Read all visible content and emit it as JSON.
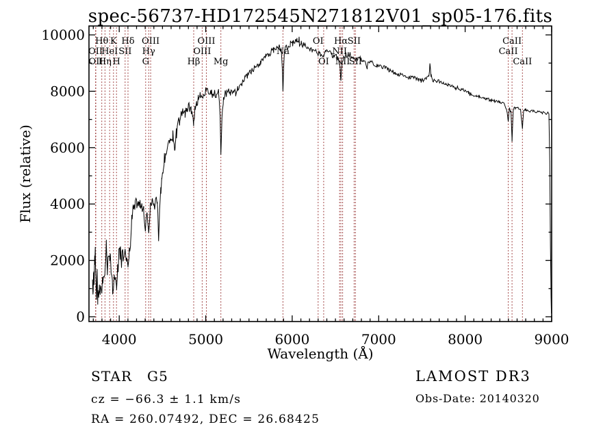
{
  "annotations": {
    "classification": "STAR",
    "subclass": "G5",
    "cz": "cz = −66.3 ± 1.1 km/s",
    "radec": "RA = 260.07492, DEC =  26.68425",
    "survey": "LAMOST DR3",
    "obs_date": "Obs-Date: 20140320"
  },
  "colors": {
    "spectrum": "#000000",
    "line_marker": "#973030",
    "text": "#000000",
    "background": "#ffffff"
  },
  "chart_data": {
    "type": "line",
    "title": "spec-56737-HD172545N271812V01_sp05-176.fits",
    "xlabel": "Wavelength (Å)",
    "ylabel": "Flux (relative)",
    "xlim": [
      3650,
      9000
    ],
    "ylim": [
      0,
      10000
    ],
    "x_major_ticks": [
      4000,
      5000,
      6000,
      7000,
      8000,
      9000
    ],
    "x_minor_step": 100,
    "y_major_ticks": [
      0,
      2000,
      4000,
      6000,
      8000,
      10000
    ],
    "y_minor_step": 1000,
    "grid": false,
    "noise_seed": 42,
    "spectral_lines": [
      {
        "label": "OII",
        "wavelength": 3726,
        "row": 2
      },
      {
        "label": "OII",
        "wavelength": 3729,
        "row": 3
      },
      {
        "label": "Hθ",
        "wavelength": 3798,
        "row": 1
      },
      {
        "label": "Hη",
        "wavelength": 3835,
        "row": 3
      },
      {
        "label": "HeI",
        "wavelength": 3889,
        "row": 2
      },
      {
        "label": "K",
        "wavelength": 3933,
        "row": 1
      },
      {
        "label": "H",
        "wavelength": 3968,
        "row": 3
      },
      {
        "label": "SII",
        "wavelength": 4068,
        "row": 2
      },
      {
        "label": "Hδ",
        "wavelength": 4101,
        "row": 1
      },
      {
        "label": "G",
        "wavelength": 4305,
        "row": 3
      },
      {
        "label": "Hγ",
        "wavelength": 4340,
        "row": 2
      },
      {
        "label": "OIII",
        "wavelength": 4363,
        "row": 1
      },
      {
        "label": "Hβ",
        "wavelength": 4861,
        "row": 3
      },
      {
        "label": "OIII",
        "wavelength": 4959,
        "row": 2
      },
      {
        "label": "OIII",
        "wavelength": 5007,
        "row": 1
      },
      {
        "label": "Mg",
        "wavelength": 5175,
        "row": 3
      },
      {
        "label": "Na",
        "wavelength": 5893,
        "row": 2
      },
      {
        "label": "OI",
        "wavelength": 6300,
        "row": 1
      },
      {
        "label": "OI",
        "wavelength": 6364,
        "row": 3
      },
      {
        "label": "NII",
        "wavelength": 6548,
        "row": 2
      },
      {
        "label": "Hα",
        "wavelength": 6563,
        "row": 1
      },
      {
        "label": "NII",
        "wavelength": 6583,
        "row": 3
      },
      {
        "label": "SII",
        "wavelength": 6716,
        "row": 1
      },
      {
        "label": "SII",
        "wavelength": 6731,
        "row": 3
      },
      {
        "label": "CaII",
        "wavelength": 8498,
        "row": 2
      },
      {
        "label": "CaII",
        "wavelength": 8542,
        "row": 1
      },
      {
        "label": "CaII",
        "wavelength": 8662,
        "row": 3
      }
    ],
    "continuum_anchors": [
      [
        3690,
        1250
      ],
      [
        3696,
        550
      ],
      [
        3702,
        1700
      ],
      [
        3709,
        1300
      ],
      [
        3716,
        2000
      ],
      [
        3723,
        2350
      ],
      [
        3730,
        1450
      ],
      [
        3737,
        900
      ],
      [
        3744,
        1500
      ],
      [
        3751,
        750
      ],
      [
        3759,
        600
      ],
      [
        3770,
        1100
      ],
      [
        3782,
        950
      ],
      [
        3795,
        1050
      ],
      [
        3810,
        1350
      ],
      [
        3825,
        1650
      ],
      [
        3840,
        1900
      ],
      [
        3851,
        2450
      ],
      [
        3862,
        1550
      ],
      [
        3876,
        2100
      ],
      [
        3890,
        2000
      ],
      [
        3905,
        1700
      ],
      [
        3920,
        1150
      ],
      [
        3933,
        800
      ],
      [
        3944,
        1300
      ],
      [
        3956,
        1600
      ],
      [
        3968,
        1000
      ],
      [
        3981,
        1650
      ],
      [
        3995,
        2150
      ],
      [
        4010,
        2500
      ],
      [
        4026,
        2000
      ],
      [
        4045,
        2150
      ],
      [
        4068,
        2300
      ],
      [
        4085,
        2050
      ],
      [
        4101,
        1850
      ],
      [
        4116,
        2350
      ],
      [
        4130,
        2750
      ],
      [
        4145,
        3400
      ],
      [
        4162,
        3800
      ],
      [
        4180,
        3950
      ],
      [
        4200,
        4050
      ],
      [
        4220,
        3850
      ],
      [
        4240,
        3950
      ],
      [
        4262,
        3850
      ],
      [
        4282,
        3700
      ],
      [
        4305,
        3250
      ],
      [
        4322,
        3600
      ],
      [
        4340,
        3050
      ],
      [
        4360,
        4000
      ],
      [
        4380,
        4250
      ],
      [
        4400,
        4150
      ],
      [
        4422,
        4050
      ],
      [
        4440,
        4250
      ],
      [
        4455,
        2650
      ],
      [
        4467,
        3900
      ],
      [
        4480,
        4400
      ],
      [
        4492,
        4800
      ],
      [
        4506,
        5100
      ],
      [
        4522,
        5450
      ],
      [
        4540,
        5800
      ],
      [
        4560,
        6050
      ],
      [
        4580,
        6250
      ],
      [
        4600,
        6150
      ],
      [
        4620,
        6450
      ],
      [
        4640,
        5950
      ],
      [
        4660,
        6550
      ],
      [
        4680,
        6800
      ],
      [
        4700,
        7050
      ],
      [
        4720,
        7250
      ],
      [
        4740,
        7350
      ],
      [
        4760,
        7200
      ],
      [
        4780,
        7400
      ],
      [
        4800,
        7450
      ],
      [
        4830,
        7350
      ],
      [
        4848,
        7200
      ],
      [
        4861,
        6900
      ],
      [
        4875,
        7400
      ],
      [
        4895,
        7600
      ],
      [
        4915,
        7700
      ],
      [
        4935,
        7800
      ],
      [
        4955,
        7850
      ],
      [
        4975,
        7950
      ],
      [
        5000,
        8050
      ],
      [
        5020,
        8100
      ],
      [
        5040,
        8050
      ],
      [
        5060,
        7950
      ],
      [
        5080,
        7900
      ],
      [
        5100,
        7950
      ],
      [
        5125,
        7900
      ],
      [
        5150,
        7800
      ],
      [
        5165,
        7300
      ],
      [
        5175,
        5700
      ],
      [
        5188,
        7100
      ],
      [
        5205,
        7750
      ],
      [
        5225,
        7900
      ],
      [
        5245,
        7950
      ],
      [
        5265,
        8000
      ],
      [
        5285,
        7950
      ],
      [
        5305,
        8000
      ],
      [
        5325,
        7950
      ],
      [
        5345,
        8050
      ],
      [
        5370,
        8100
      ],
      [
        5395,
        8200
      ],
      [
        5425,
        8300
      ],
      [
        5455,
        8450
      ],
      [
        5485,
        8550
      ],
      [
        5515,
        8650
      ],
      [
        5545,
        8750
      ],
      [
        5575,
        8850
      ],
      [
        5605,
        8950
      ],
      [
        5635,
        9050
      ],
      [
        5665,
        9150
      ],
      [
        5695,
        9250
      ],
      [
        5725,
        9300
      ],
      [
        5755,
        9400
      ],
      [
        5785,
        9450
      ],
      [
        5815,
        9500
      ],
      [
        5845,
        9550
      ],
      [
        5872,
        9550
      ],
      [
        5887,
        8700
      ],
      [
        5893,
        7950
      ],
      [
        5901,
        8900
      ],
      [
        5912,
        9500
      ],
      [
        5932,
        9550
      ],
      [
        5955,
        9600
      ],
      [
        5980,
        9650
      ],
      [
        6005,
        9700
      ],
      [
        6030,
        9800
      ],
      [
        6055,
        9850
      ],
      [
        6080,
        9800
      ],
      [
        6105,
        9700
      ],
      [
        6130,
        9700
      ],
      [
        6155,
        9650
      ],
      [
        6180,
        9550
      ],
      [
        6205,
        9500
      ],
      [
        6230,
        9450
      ],
      [
        6255,
        9450
      ],
      [
        6280,
        9400
      ],
      [
        6300,
        9350
      ],
      [
        6322,
        9400
      ],
      [
        6345,
        9350
      ],
      [
        6364,
        9250
      ],
      [
        6385,
        9400
      ],
      [
        6410,
        9450
      ],
      [
        6435,
        9350
      ],
      [
        6460,
        9300
      ],
      [
        6485,
        9250
      ],
      [
        6510,
        9250
      ],
      [
        6535,
        9150
      ],
      [
        6552,
        8850
      ],
      [
        6563,
        8300
      ],
      [
        6574,
        8950
      ],
      [
        6595,
        9200
      ],
      [
        6620,
        9250
      ],
      [
        6648,
        9300
      ],
      [
        6675,
        9250
      ],
      [
        6702,
        9200
      ],
      [
        6731,
        9100
      ],
      [
        6760,
        9200
      ],
      [
        6790,
        9150
      ],
      [
        6820,
        9100
      ],
      [
        6850,
        8950
      ],
      [
        6868,
        8850
      ],
      [
        6890,
        9000
      ],
      [
        6920,
        9000
      ],
      [
        6950,
        8950
      ],
      [
        6980,
        8900
      ],
      [
        7010,
        8900
      ],
      [
        7040,
        8850
      ],
      [
        7070,
        8850
      ],
      [
        7100,
        8800
      ],
      [
        7130,
        8750
      ],
      [
        7160,
        8700
      ],
      [
        7190,
        8650
      ],
      [
        7220,
        8600
      ],
      [
        7250,
        8600
      ],
      [
        7280,
        8550
      ],
      [
        7310,
        8550
      ],
      [
        7340,
        8500
      ],
      [
        7370,
        8500
      ],
      [
        7400,
        8500
      ],
      [
        7430,
        8450
      ],
      [
        7460,
        8400
      ],
      [
        7490,
        8400
      ],
      [
        7520,
        8400
      ],
      [
        7550,
        8450
      ],
      [
        7580,
        8550
      ],
      [
        7592,
        9050
      ],
      [
        7606,
        8550
      ],
      [
        7625,
        8400
      ],
      [
        7650,
        8400
      ],
      [
        7675,
        8350
      ],
      [
        7700,
        8350
      ],
      [
        7725,
        8300
      ],
      [
        7750,
        8300
      ],
      [
        7775,
        8250
      ],
      [
        7800,
        8250
      ],
      [
        7830,
        8200
      ],
      [
        7860,
        8150
      ],
      [
        7890,
        8100
      ],
      [
        7920,
        8100
      ],
      [
        7950,
        8050
      ],
      [
        7980,
        8050
      ],
      [
        8010,
        8000
      ],
      [
        8040,
        7950
      ],
      [
        8070,
        7900
      ],
      [
        8100,
        7850
      ],
      [
        8130,
        7850
      ],
      [
        8160,
        7800
      ],
      [
        8190,
        7800
      ],
      [
        8220,
        7750
      ],
      [
        8250,
        7750
      ],
      [
        8280,
        7700
      ],
      [
        8310,
        7700
      ],
      [
        8340,
        7650
      ],
      [
        8370,
        7650
      ],
      [
        8400,
        7600
      ],
      [
        8430,
        7600
      ],
      [
        8460,
        7550
      ],
      [
        8488,
        7200
      ],
      [
        8498,
        6950
      ],
      [
        8512,
        7400
      ],
      [
        8530,
        7250
      ],
      [
        8542,
        6250
      ],
      [
        8556,
        7350
      ],
      [
        8580,
        7400
      ],
      [
        8610,
        7400
      ],
      [
        8640,
        7350
      ],
      [
        8662,
        6700
      ],
      [
        8676,
        7350
      ],
      [
        8700,
        7350
      ],
      [
        8730,
        7300
      ],
      [
        8760,
        7300
      ],
      [
        8790,
        7300
      ],
      [
        8820,
        7250
      ],
      [
        8850,
        7300
      ],
      [
        8880,
        7250
      ],
      [
        8910,
        7250
      ],
      [
        8935,
        7200
      ],
      [
        8955,
        7250
      ],
      [
        8968,
        7200
      ],
      [
        8978,
        5500
      ],
      [
        8986,
        2500
      ],
      [
        8993,
        700
      ],
      [
        8997,
        120
      ]
    ],
    "noise_envelope": [
      [
        3690,
        460
      ],
      [
        3850,
        430
      ],
      [
        4000,
        380
      ],
      [
        4200,
        340
      ],
      [
        4400,
        310
      ],
      [
        4550,
        280
      ],
      [
        4750,
        250
      ],
      [
        4950,
        230
      ],
      [
        5150,
        190
      ],
      [
        5400,
        165
      ],
      [
        5650,
        150
      ],
      [
        5900,
        140
      ],
      [
        6200,
        130
      ],
      [
        6500,
        125
      ],
      [
        6800,
        110
      ],
      [
        7100,
        95
      ],
      [
        7400,
        90
      ],
      [
        7700,
        80
      ],
      [
        8000,
        70
      ],
      [
        8300,
        65
      ],
      [
        8600,
        58
      ],
      [
        8900,
        50
      ],
      [
        9000,
        40
      ]
    ]
  }
}
